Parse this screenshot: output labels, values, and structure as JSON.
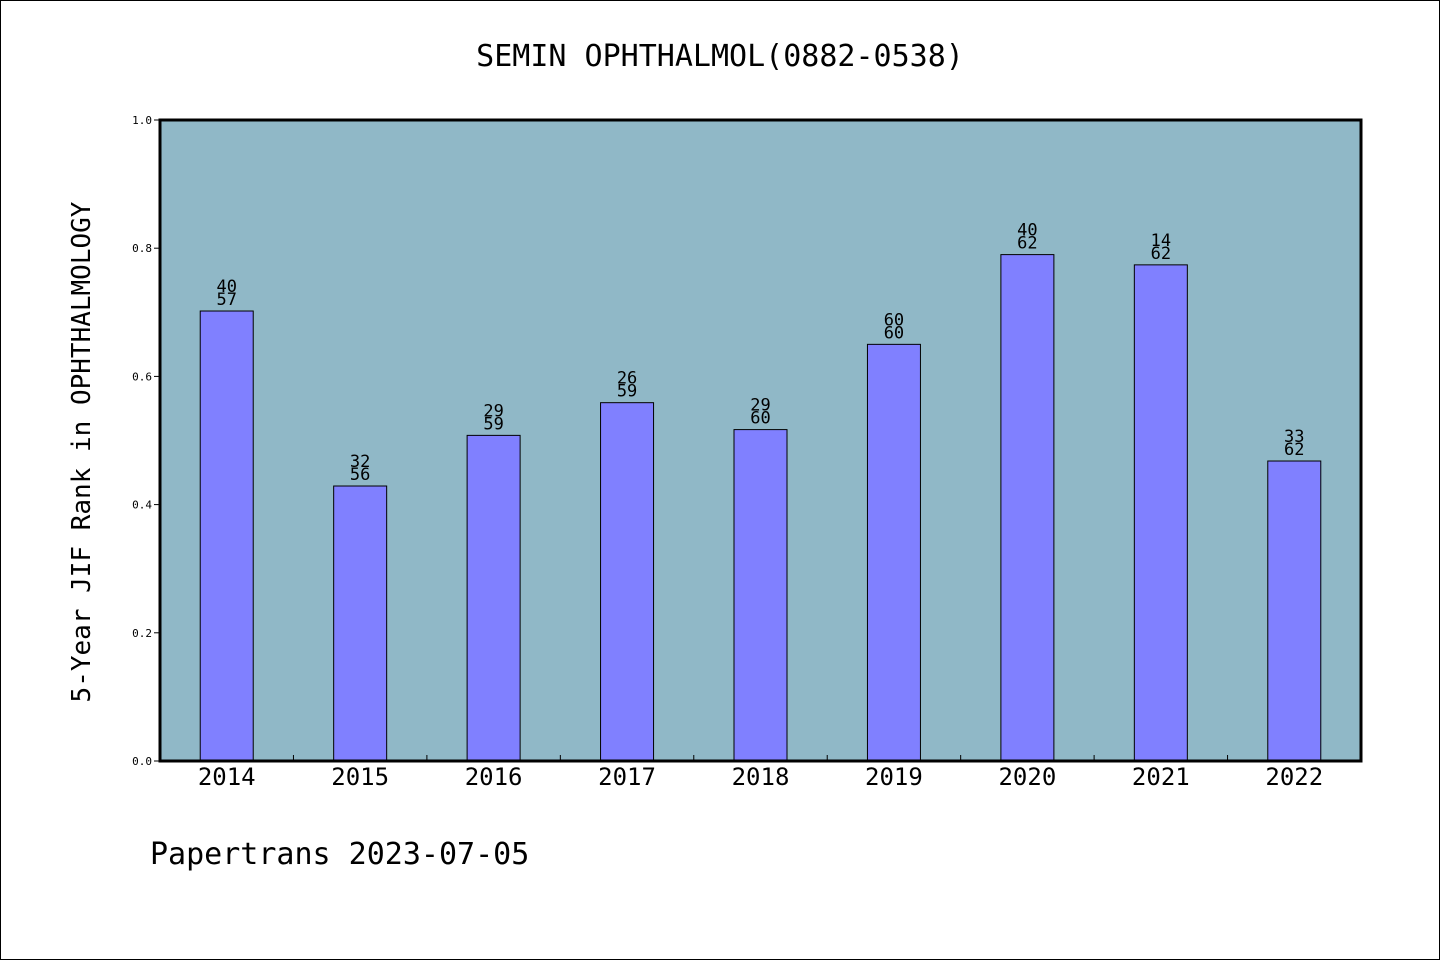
{
  "chart_data": {
    "type": "bar",
    "title": "SEMIN OPHTHALMOL(0882-0538)",
    "xlabel": "",
    "ylabel": "5-Year JIF Rank in OPHTHALMOLOGY",
    "ylim": [
      0,
      1.0
    ],
    "yticks": [
      "0.0",
      "0.2",
      "0.4",
      "0.6",
      "0.8",
      "1.0"
    ],
    "categories": [
      "2014",
      "2015",
      "2016",
      "2017",
      "2018",
      "2019",
      "2020",
      "2021",
      "2022"
    ],
    "values": [
      0.702,
      0.429,
      0.508,
      0.559,
      0.517,
      0.65,
      0.79,
      0.774,
      0.468
    ],
    "rank_labels": [
      {
        "rank": "40",
        "total": "57"
      },
      {
        "rank": "32",
        "total": "56"
      },
      {
        "rank": "29",
        "total": "59"
      },
      {
        "rank": "26",
        "total": "59"
      },
      {
        "rank": "29",
        "total": "60"
      },
      {
        "rank": "60",
        "total": "60"
      },
      {
        "rank": "40",
        "total": "62"
      },
      {
        "rank": "14",
        "total": "62"
      },
      {
        "rank": "33",
        "total": "62"
      }
    ],
    "grid": false,
    "colors": {
      "plot_background": "#90b8c7",
      "bar_fill": "#8080ff",
      "bar_stroke": "#000000"
    }
  },
  "footer": {
    "credit": "Papertrans 2023-07-05"
  }
}
